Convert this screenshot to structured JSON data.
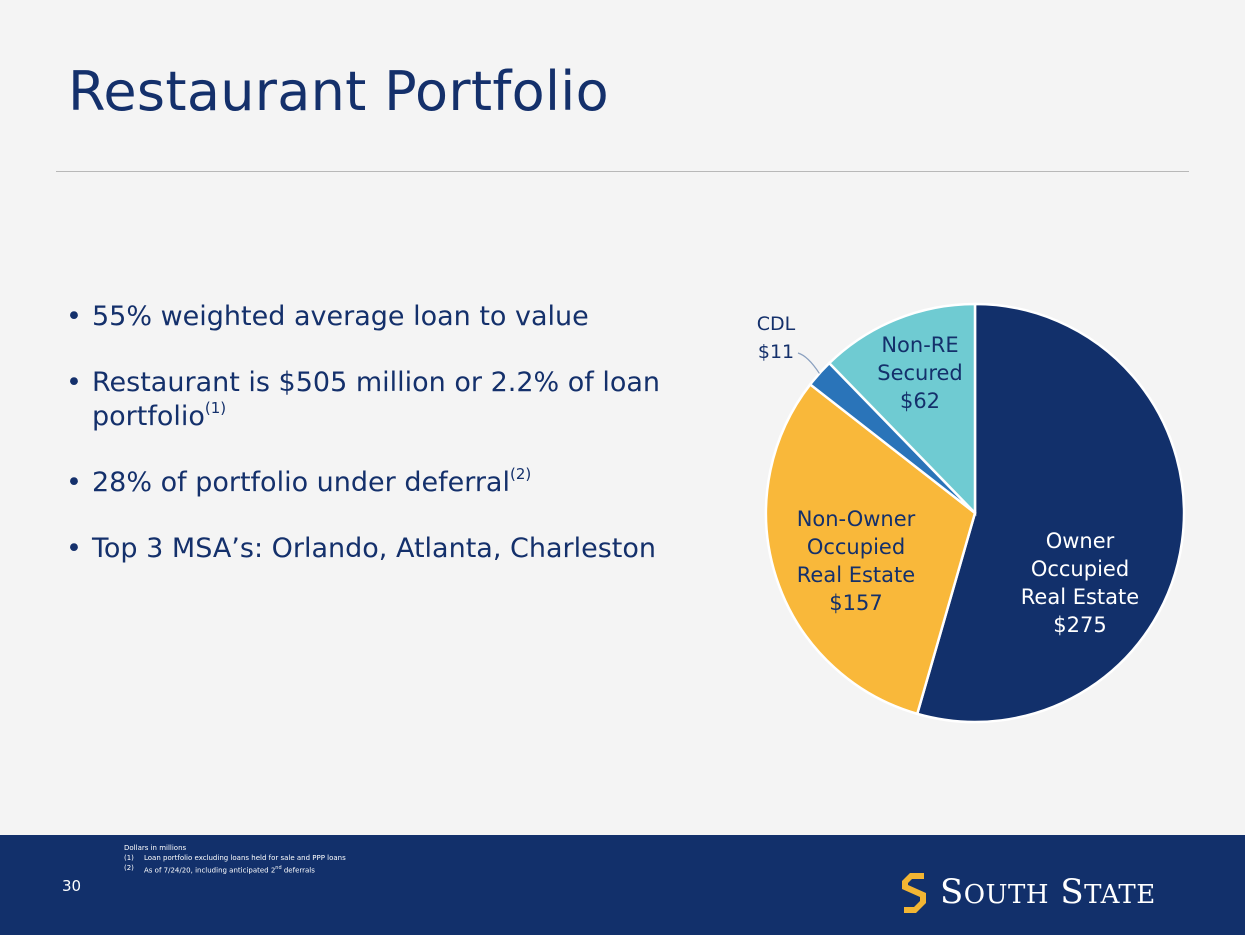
{
  "slide": {
    "title": "Restaurant Portfolio",
    "page_number": "30"
  },
  "bullets": [
    {
      "text": "55% weighted average loan to value",
      "sup": ""
    },
    {
      "text": "Restaurant is $505 million or 2.2% of loan portfolio",
      "sup": "(1)"
    },
    {
      "text": "28% of portfolio under deferral",
      "sup": "(2)"
    },
    {
      "text": "Top 3 MSA’s: Orlando, Atlanta, Charleston",
      "sup": ""
    }
  ],
  "footnotes": {
    "units": "Dollars in millions",
    "items": [
      {
        "marker": "(1)",
        "text": "Loan portfolio excluding loans held for sale and PPP loans"
      },
      {
        "marker": "(2)",
        "text": "As of 7/24/20, including anticipated 2nd deferrals"
      }
    ]
  },
  "logo": {
    "text": "South State",
    "icon": "south-state-s-icon",
    "color": "#f2b533"
  },
  "chart_data": {
    "type": "pie",
    "start_angle_deg": 0,
    "direction": "clockwise",
    "slices": [
      {
        "label": [
          "Owner",
          "Occupied",
          "Real Estate",
          "$275"
        ],
        "value": 275,
        "color": "#12306b",
        "text_color": "#ffffff"
      },
      {
        "label": [
          "Non-Owner",
          "Occupied",
          "Real Estate",
          "$157"
        ],
        "value": 157,
        "color": "#f9b83a",
        "text_color": "#14306b"
      },
      {
        "label": [
          "CDL",
          "$11"
        ],
        "value": 11,
        "color": "#2a74b9",
        "text_color": "#14306b"
      },
      {
        "label": [
          "Non-RE",
          "Secured",
          "$62"
        ],
        "value": 62,
        "color": "#6fcbd2",
        "text_color": "#14306b"
      }
    ]
  }
}
